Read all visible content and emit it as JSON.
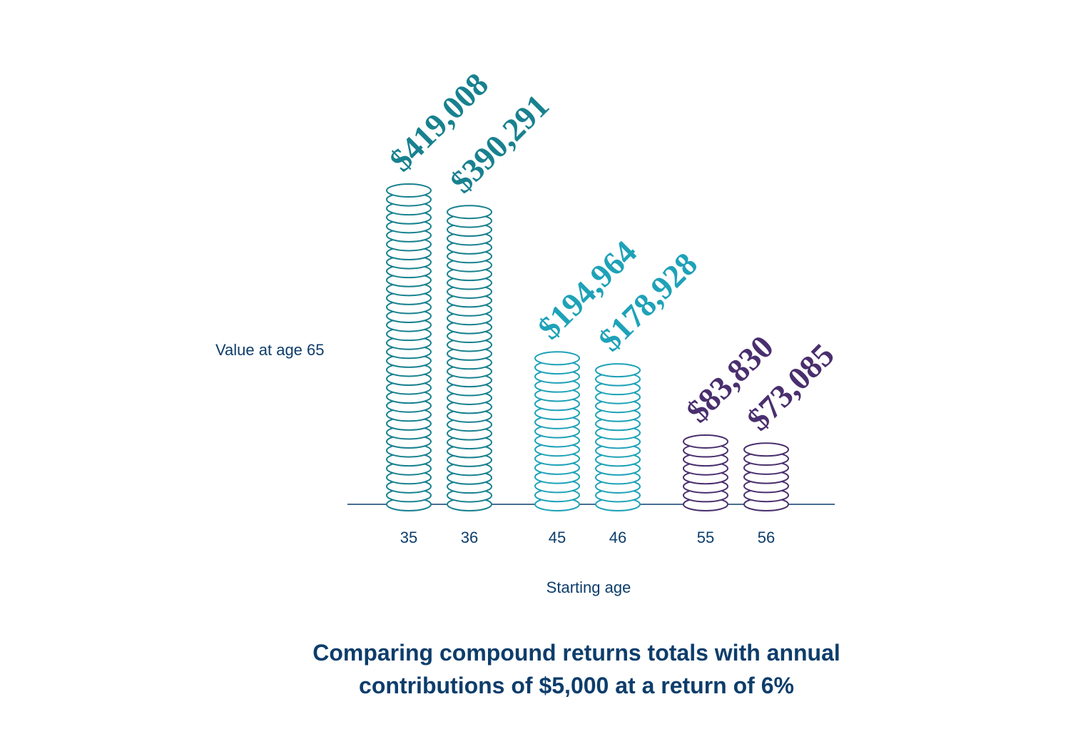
{
  "chart_data": {
    "type": "coin-stack",
    "title": "Comparing compound returns totals with annual contributions of $5,000 at a return of 6%",
    "x_label": "Starting age",
    "y_label": "Value at age 65",
    "categories": [
      "35",
      "36",
      "45",
      "46",
      "55",
      "56"
    ],
    "values": [
      419008,
      390291,
      194964,
      178928,
      83830,
      73085
    ],
    "value_labels": [
      "$419,008",
      "$390,291",
      "$194,964",
      "$178,928",
      "$83,830",
      "$73,085"
    ],
    "colors": [
      "#18818f",
      "#18818f",
      "#1ea2b8",
      "#1ea2b8",
      "#4a2f6e",
      "#4a2f6e"
    ]
  }
}
